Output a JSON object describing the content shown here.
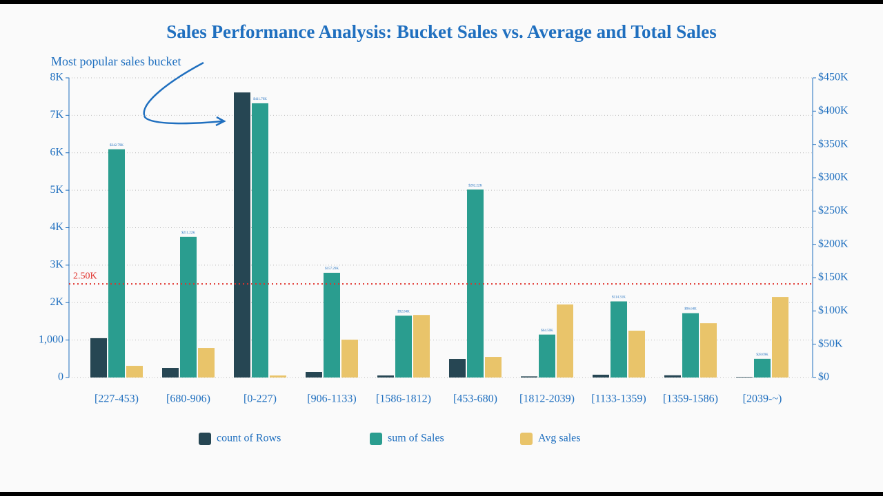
{
  "chart_data": {
    "type": "bar",
    "title": "Sales Performance Analysis: Bucket Sales vs. Average and Total Sales",
    "categories": [
      "[227-453)",
      "[680-906)",
      "[0-227)",
      "[906-1133)",
      "[1586-1812)",
      "[453-680)",
      "[1812-2039)",
      "[1133-1359)",
      "[1359-1586)",
      "[2039-~)"
    ],
    "series": [
      {
        "name": "count of Rows",
        "color": "#264653",
        "values": [
          1050,
          257,
          7610,
          147,
          55,
          496,
          30,
          75,
          60,
          15
        ]
      },
      {
        "name": "sum of Sales",
        "color": "#2a9d8f",
        "axis": "y2",
        "values": [
          342790,
          211220,
          411790,
          157290,
          92840,
          282220,
          64500,
          114310,
          96640,
          28090
        ],
        "value_labels": [
          "$342.79K",
          "$211.22K",
          "$411.79K",
          "$157.29K",
          "$92.84K",
          "$282.22K",
          "$64.50K",
          "$114.31K",
          "$96.64K",
          "$28.09K"
        ]
      },
      {
        "name": "Avg sales",
        "color": "#e9c46a",
        "values": [
          312,
          790,
          54,
          1010,
          1670,
          551,
          1950,
          1250,
          1450,
          2150
        ]
      }
    ],
    "ylim": [
      0,
      8000
    ],
    "yticks": [
      0,
      {
        "value": 1000,
        "label": "1,000"
      },
      {
        "value": 2000,
        "label": "2K"
      },
      {
        "value": 3000,
        "label": "3K"
      },
      {
        "value": 4000,
        "label": "4K"
      },
      {
        "value": 5000,
        "label": "5K"
      },
      {
        "value": 6000,
        "label": "6K"
      },
      {
        "value": 7000,
        "label": "7K"
      },
      {
        "value": 8000,
        "label": "8K"
      }
    ],
    "y2lim": [
      0,
      450000
    ],
    "y2ticks": [
      {
        "value": 0,
        "label": "$0"
      },
      {
        "value": 50000,
        "label": "$50K"
      },
      {
        "value": 100000,
        "label": "$100K"
      },
      {
        "value": 150000,
        "label": "$150K"
      },
      {
        "value": 200000,
        "label": "$200K"
      },
      {
        "value": 250000,
        "label": "$250K"
      },
      {
        "value": 300000,
        "label": "$300K"
      },
      {
        "value": 350000,
        "label": "$350K"
      },
      {
        "value": 400000,
        "label": "$400K"
      },
      {
        "value": 450000,
        "label": "$450K"
      }
    ],
    "reference_line": {
      "value": 2500,
      "label": "2.50K",
      "color": "#e0312b"
    },
    "annotation": "Most popular sales bucket",
    "grid": true,
    "legend": "bottom"
  }
}
